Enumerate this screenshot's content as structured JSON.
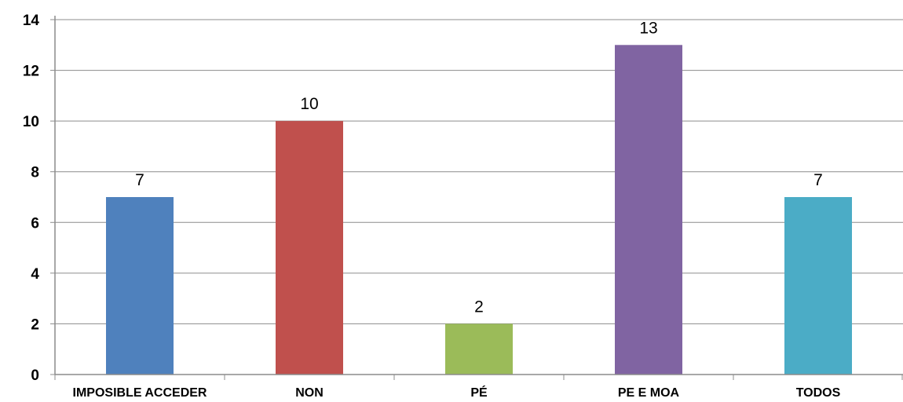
{
  "chart_data": {
    "type": "bar",
    "title": "",
    "xlabel": "",
    "ylabel": "",
    "categories": [
      "IMPOSIBLE ACCEDER",
      "NON",
      "PÉ",
      "PE E MOA",
      "TODOS"
    ],
    "values": [
      7,
      10,
      2,
      13,
      7
    ],
    "colors": [
      "#4f81bd",
      "#c0504d",
      "#9bbb59",
      "#8064a2",
      "#4bacc6"
    ],
    "data_labels": [
      "7",
      "10",
      "2",
      "13",
      "7"
    ],
    "ylim": [
      0,
      14
    ],
    "yticks": [
      0,
      2,
      4,
      6,
      8,
      10,
      12,
      14
    ],
    "ytick_labels": [
      "0",
      "2",
      "4",
      "6",
      "8",
      "10",
      "12",
      "14"
    ],
    "grid": true,
    "legend": "none"
  }
}
